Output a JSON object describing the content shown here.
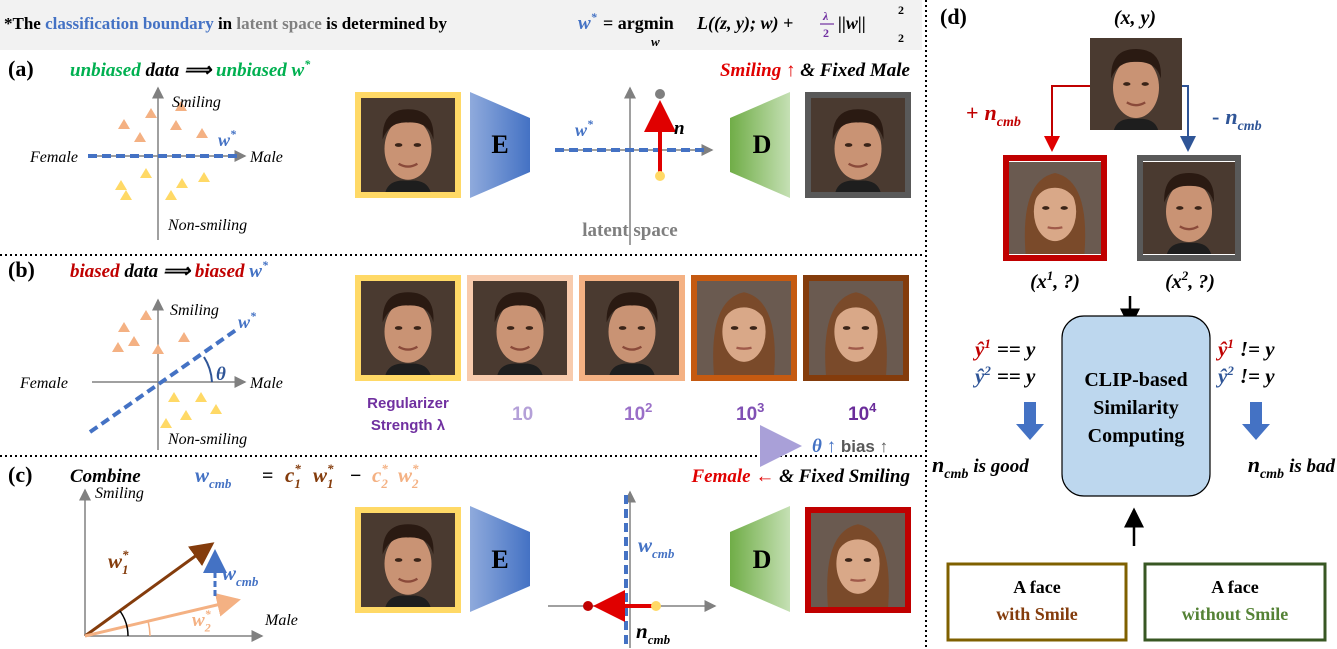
{
  "header": {
    "prefix": "*The",
    "term1": "classification boundary",
    "mid1": "in",
    "term2": "latent space",
    "mid2": "is determined by",
    "w": "w",
    "w_sup": "*",
    "argmin": "= argmin",
    "argmin_sub": "w",
    "loss": "L((z, y); w) +",
    "lambda": "λ",
    "two": "2",
    "norm": "||w||",
    "norm_sup": "2",
    "norm_sub": "2"
  },
  "panel_a": {
    "label": "(a)",
    "caption": [
      "unbiased",
      "data ⟹",
      "unbiased",
      "w"
    ],
    "caption_sup": "*",
    "axis": {
      "up": "Smiling",
      "left": "Female",
      "right": "Male",
      "down": "Non-smiling",
      "boundary": "w",
      "boundary_sup": "*"
    },
    "encoder": "E",
    "latent": {
      "boundary": "w",
      "boundary_sup": "*",
      "direction": "n",
      "label": "latent space"
    },
    "decoder": "D",
    "edit": "Smiling ↑",
    "edit_rest": "& Fixed Male"
  },
  "panel_b": {
    "label": "(b)",
    "caption": [
      "biased",
      "data ⟹",
      "biased",
      "w"
    ],
    "caption_sup": "*",
    "axis": {
      "up": "Smiling",
      "left": "Female",
      "right": "Male",
      "down": "Non-smiling",
      "boundary": "w",
      "boundary_sup": "*",
      "angle": "θ"
    },
    "regularizer": [
      "Regularizer",
      "Strength λ"
    ],
    "strengths": [
      {
        "base": "10"
      },
      {
        "base": "10",
        "exp": "2"
      },
      {
        "base": "10",
        "exp": "3"
      },
      {
        "base": "10",
        "exp": "4"
      }
    ],
    "trend": "θ ↑",
    "trend_rest": "bias ↑"
  },
  "panel_c": {
    "label": "(c)",
    "caption": "Combine",
    "equation": {
      "lhs": {
        "base": "w",
        "sub": "cmb"
      },
      "eq": "=",
      "t1": {
        "base": "c",
        "sub": "1",
        "sup": "*"
      },
      "t2": {
        "base": "w",
        "sub": "1",
        "sup": "*"
      },
      "minus": "−",
      "t3": {
        "base": "c",
        "sub": "2",
        "sup": "*"
      },
      "t4": {
        "base": "w",
        "sub": "2",
        "sup": "*"
      }
    },
    "axis": {
      "up": "Smiling",
      "right": "Male",
      "w1": {
        "base": "w",
        "sub": "1",
        "sup": "*"
      },
      "wcmb": {
        "base": "w",
        "sub": "cmb"
      },
      "w2": {
        "base": "w",
        "sub": "2",
        "sup": "*"
      }
    },
    "encoder": "E",
    "latent": {
      "boundary": {
        "base": "w",
        "sub": "cmb"
      },
      "direction": {
        "base": "n",
        "sub": "cmb"
      }
    },
    "decoder": "D",
    "edit": "Female ←",
    "edit_rest": "& Fixed Smiling"
  },
  "panel_d": {
    "label": "(d)",
    "input": "(x, y)",
    "plus": {
      "sign": "+",
      "base": "n",
      "sub": "cmb"
    },
    "minus": {
      "sign": "-",
      "base": "n",
      "sub": "cmb"
    },
    "out1": {
      "open": "(x",
      "sup": "1",
      "close": ", ?)"
    },
    "out2": {
      "open": "(x",
      "sup": "2",
      "close": ", ?)"
    },
    "module": [
      "CLIP-based",
      "Similarity",
      "Computing"
    ],
    "good": {
      "lines": [
        {
          "hat": "ŷ",
          "sup": "1",
          "rest": "== y"
        },
        {
          "hat": "ŷ",
          "sup": "2",
          "rest": "== y"
        }
      ],
      "base": "n",
      "sub": "cmb",
      "rest": "is good"
    },
    "bad": {
      "lines": [
        {
          "hat": "ŷ",
          "sup": "1",
          "rest": "!= y"
        },
        {
          "hat": "ŷ",
          "sup": "2",
          "rest": "!= y"
        }
      ],
      "base": "n",
      "sub": "cmb",
      "rest": "is bad"
    },
    "prompts": [
      [
        "A face",
        "with Smile"
      ],
      [
        "A face",
        "without Smile"
      ]
    ]
  }
}
